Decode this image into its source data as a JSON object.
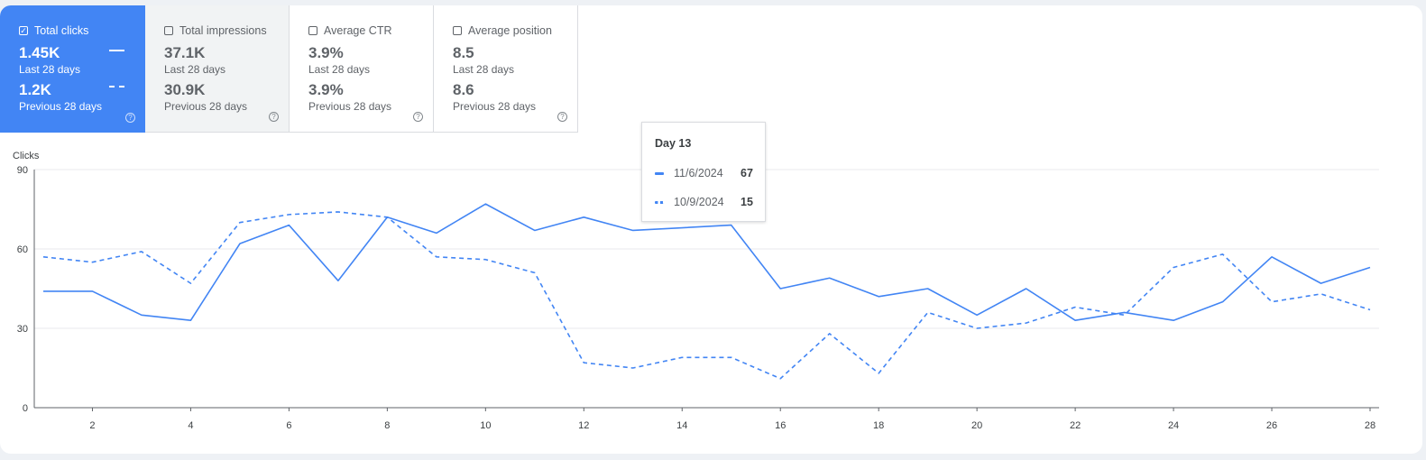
{
  "cards": [
    {
      "title": "Total clicks",
      "checked": true,
      "current": "1.45K",
      "current_label": "Last 28 days",
      "previous": "1.2K",
      "previous_label": "Previous 28 days"
    },
    {
      "title": "Total impressions",
      "checked": false,
      "current": "37.1K",
      "current_label": "Last 28 days",
      "previous": "30.9K",
      "previous_label": "Previous 28 days"
    },
    {
      "title": "Average CTR",
      "checked": false,
      "current": "3.9%",
      "current_label": "Last 28 days",
      "previous": "3.9%",
      "previous_label": "Previous 28 days"
    },
    {
      "title": "Average position",
      "checked": false,
      "current": "8.5",
      "current_label": "Last 28 days",
      "previous": "8.6",
      "previous_label": "Previous 28 days"
    }
  ],
  "icons": {
    "checkbox_checked": "check-icon",
    "help": "help-circle-icon"
  },
  "tooltip": {
    "title": "Day 13",
    "rows": [
      {
        "date": "11/6/2024",
        "value": "67"
      },
      {
        "date": "10/9/2024",
        "value": "15"
      }
    ]
  },
  "colors": {
    "accent": "#4285f4",
    "grid": "#e8eaed",
    "axis": "#5f6368"
  },
  "chart_data": {
    "type": "line",
    "ylabel": "Clicks",
    "ylim": [
      0,
      90
    ],
    "yticks": [
      0,
      30,
      60,
      90
    ],
    "xlim": [
      1,
      28
    ],
    "xticks": [
      2,
      4,
      6,
      8,
      10,
      12,
      14,
      16,
      18,
      20,
      22,
      24,
      26,
      28
    ],
    "x": [
      1,
      2,
      3,
      4,
      5,
      6,
      7,
      8,
      9,
      10,
      11,
      12,
      13,
      14,
      15,
      16,
      17,
      18,
      19,
      20,
      21,
      22,
      23,
      24,
      25,
      26,
      27,
      28
    ],
    "series": [
      {
        "style": "solid",
        "values": [
          44,
          44,
          35,
          33,
          62,
          69,
          48,
          72,
          66,
          77,
          67,
          72,
          67,
          68,
          69,
          45,
          49,
          42,
          45,
          35,
          45,
          33,
          36,
          33,
          40,
          57,
          47,
          53
        ]
      },
      {
        "style": "dashed",
        "values": [
          57,
          55,
          59,
          47,
          70,
          73,
          74,
          72,
          57,
          56,
          51,
          17,
          15,
          19,
          19,
          11,
          28,
          13,
          36,
          30,
          32,
          38,
          35,
          53,
          58,
          40,
          43,
          37
        ]
      }
    ]
  }
}
